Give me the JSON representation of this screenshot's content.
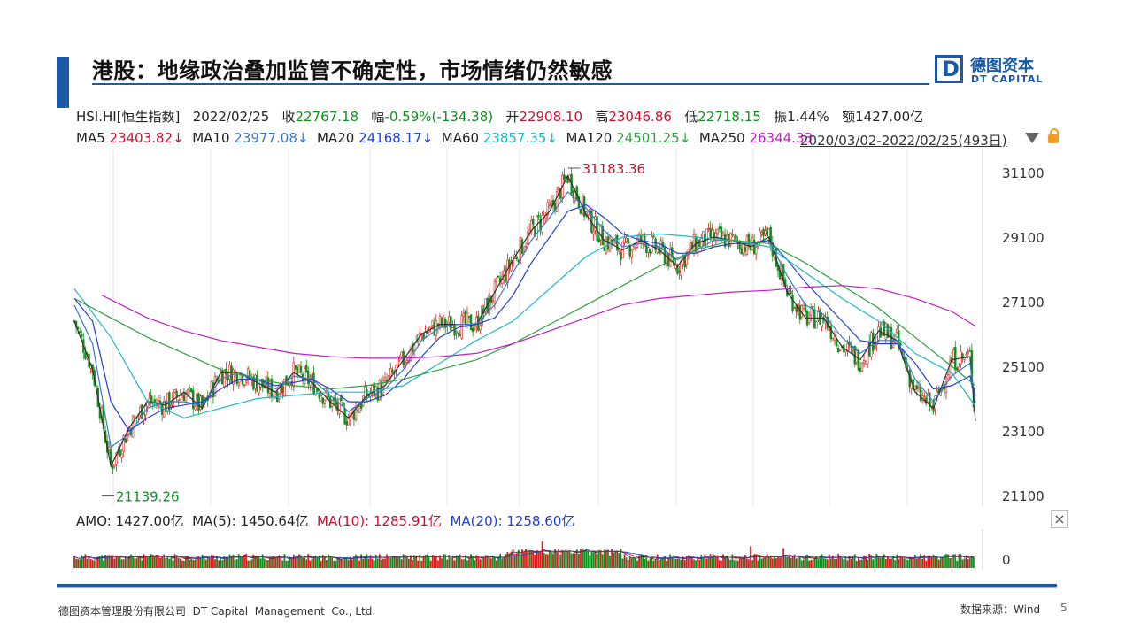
{
  "header": {
    "title": "港股：地缘政治叠加监管不确定性，市场情绪仍然敏感",
    "logo_cn": "德图资本",
    "logo_en": "DT CAPITAL",
    "logo_letter": "D"
  },
  "quote": {
    "code": "HSI.HI[恒生指数]",
    "date": "2022/02/25",
    "close_label": "收",
    "close": "22767.18",
    "chg_label": "幅",
    "chg": "-0.59%(-134.38)",
    "open_label": "开",
    "open": "22908.10",
    "high_label": "高",
    "high": "23046.86",
    "low_label": "低",
    "low": "22718.15",
    "amp_label": "振",
    "amp": "1.44%",
    "amt_label": "额",
    "amt": "1427.00亿"
  },
  "ma": {
    "ma5_label": "MA5",
    "ma5": "23403.82↓",
    "ma10_label": "MA10",
    "ma10": "23977.08↓",
    "ma20_label": "MA20",
    "ma20": "24168.17↓",
    "ma60_label": "MA60",
    "ma60": "23857.35↓",
    "ma120_label": "MA120",
    "ma120": "24501.25↓",
    "ma250_label": "MA250",
    "ma250": "26344.33",
    "range": "2020/03/02-2022/02/25(493日)"
  },
  "volume": {
    "amo_label": "AMO:",
    "amo": "1427.00亿",
    "ma5_label": "MA(5):",
    "ma5": "1450.64亿",
    "ma10_label": "MA(10):",
    "ma10": "1285.91亿",
    "ma20_label": "MA(20):",
    "ma20": "1258.60亿",
    "zero_label": "0"
  },
  "chart_data": {
    "type": "line",
    "title": "",
    "xlabel": "",
    "ylabel": "",
    "x_range": [
      "2020/03/02",
      "2022/02/25"
    ],
    "ylim": [
      21100,
      31600
    ],
    "y_ticks": [
      "31100",
      "29100",
      "27100",
      "25100",
      "23100",
      "21100"
    ],
    "annotations": {
      "high": "31183.36",
      "low": "21139.26"
    },
    "colors": {
      "up": "#d42020",
      "down": "#109020",
      "ma5": "#303030",
      "ma10": "#3a78c8",
      "ma20": "#2040d0",
      "ma60": "#20b8c8",
      "ma120": "#30a040",
      "ma250": "#c020c0"
    },
    "series": [
      {
        "name": "MA5",
        "x": [
          0,
          10,
          20,
          30,
          40,
          50,
          60,
          70,
          80,
          90,
          100,
          110,
          120,
          130,
          140,
          150,
          160,
          170,
          180,
          190,
          200,
          210,
          220,
          230,
          240,
          250,
          260,
          270,
          280,
          290,
          300,
          310,
          320,
          330,
          340,
          350,
          360,
          370,
          380,
          390,
          400,
          410,
          420,
          430,
          440,
          450,
          460,
          470,
          480,
          490,
          493
        ],
        "values": [
          26500,
          25000,
          22000,
          23200,
          24000,
          23900,
          24300,
          23800,
          24900,
          24900,
          24600,
          24300,
          24900,
          24600,
          24000,
          23500,
          24200,
          24500,
          25300,
          26100,
          26400,
          26400,
          26400,
          27400,
          28400,
          29300,
          29900,
          31000,
          29800,
          29000,
          28700,
          29000,
          28700,
          28200,
          28900,
          29100,
          29000,
          28800,
          29100,
          27400,
          26600,
          26600,
          25700,
          25300,
          26200,
          25900,
          24300,
          23800,
          25300,
          25400,
          23400
        ]
      },
      {
        "name": "MA10",
        "x": [
          0,
          10,
          20,
          30,
          40,
          50,
          60,
          70,
          80,
          90,
          100,
          110,
          120,
          130,
          140,
          150,
          160,
          170,
          180,
          190,
          200,
          210,
          220,
          230,
          240,
          250,
          260,
          270,
          280,
          290,
          300,
          310,
          320,
          330,
          340,
          350,
          360,
          370,
          380,
          390,
          400,
          410,
          420,
          430,
          440,
          450,
          460,
          470,
          480,
          490,
          493
        ],
        "values": [
          27000,
          25800,
          22600,
          23000,
          23800,
          24000,
          24000,
          23900,
          24700,
          24900,
          24700,
          24400,
          24800,
          24700,
          24200,
          23700,
          24100,
          24400,
          25000,
          25900,
          26300,
          26400,
          26400,
          27000,
          28000,
          29000,
          29700,
          30500,
          30000,
          29300,
          28800,
          28900,
          28800,
          28400,
          28700,
          29000,
          29000,
          28900,
          29000,
          27900,
          27000,
          26700,
          26000,
          25500,
          25900,
          25900,
          24700,
          24000,
          24800,
          25200,
          23977
        ]
      },
      {
        "name": "MA20",
        "x": [
          0,
          10,
          20,
          30,
          40,
          50,
          60,
          70,
          80,
          90,
          100,
          110,
          120,
          130,
          140,
          150,
          160,
          170,
          180,
          190,
          200,
          210,
          220,
          230,
          240,
          250,
          260,
          270,
          280,
          290,
          300,
          310,
          320,
          330,
          340,
          350,
          360,
          370,
          380,
          390,
          400,
          410,
          420,
          430,
          440,
          450,
          460,
          470,
          480,
          490,
          493
        ],
        "values": [
          27200,
          26500,
          24000,
          23100,
          23500,
          23800,
          23900,
          24000,
          24400,
          24700,
          24700,
          24500,
          24600,
          24700,
          24400,
          24000,
          24000,
          24200,
          24700,
          25400,
          26000,
          26300,
          26400,
          26600,
          27300,
          28300,
          29100,
          29900,
          30100,
          29700,
          29200,
          29000,
          28900,
          28600,
          28600,
          28800,
          28900,
          28900,
          29000,
          28400,
          27700,
          27100,
          26500,
          25900,
          25800,
          25800,
          25200,
          24400,
          24500,
          24800,
          24168
        ]
      },
      {
        "name": "MA60",
        "x": [
          0,
          20,
          40,
          60,
          80,
          100,
          120,
          140,
          160,
          180,
          200,
          220,
          240,
          260,
          280,
          300,
          320,
          340,
          360,
          380,
          400,
          420,
          440,
          460,
          480,
          493
        ],
        "values": [
          27500,
          26000,
          24000,
          23500,
          23800,
          24100,
          24200,
          24300,
          24300,
          24500,
          25200,
          25900,
          26500,
          27500,
          28500,
          29100,
          29200,
          29100,
          29000,
          28800,
          28000,
          27200,
          26500,
          25500,
          24900,
          23857
        ]
      },
      {
        "name": "MA120",
        "x": [
          0,
          20,
          40,
          60,
          80,
          100,
          120,
          140,
          160,
          180,
          200,
          220,
          240,
          260,
          280,
          300,
          320,
          340,
          360,
          380,
          400,
          420,
          440,
          460,
          480,
          493
        ],
        "values": [
          27200,
          26600,
          26000,
          25500,
          25000,
          24700,
          24500,
          24400,
          24500,
          24700,
          25000,
          25300,
          25800,
          26400,
          27000,
          27600,
          28200,
          28700,
          29000,
          28900,
          28300,
          27600,
          26900,
          26000,
          25100,
          24501
        ]
      },
      {
        "name": "MA250",
        "x": [
          15,
          40,
          60,
          80,
          100,
          120,
          140,
          160,
          180,
          200,
          220,
          240,
          260,
          280,
          300,
          320,
          340,
          360,
          380,
          400,
          420,
          440,
          460,
          480,
          493
        ],
        "values": [
          27300,
          26600,
          26200,
          25900,
          25700,
          25500,
          25400,
          25350,
          25350,
          25400,
          25500,
          25800,
          26200,
          26600,
          27000,
          27200,
          27300,
          27400,
          27450,
          27550,
          27600,
          27500,
          27200,
          26800,
          26344
        ]
      }
    ]
  }
}
